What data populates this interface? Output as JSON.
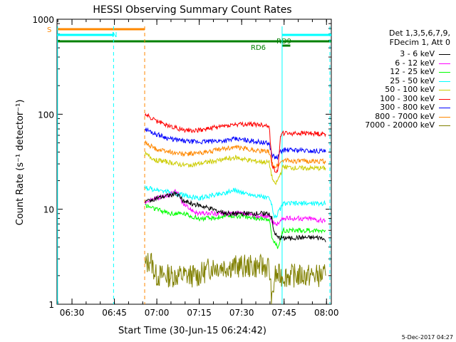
{
  "chart_data": {
    "type": "line",
    "title": "HESSI Observing Summary Count Rates",
    "xlabel": "Start Time (30-Jun-15 06:24:42)",
    "ylabel": "Count Rate (s⁻¹ detector⁻¹)",
    "y_scale": "log",
    "ylim": [
      1,
      1000
    ],
    "xlim_minutes_after_0624": [
      0,
      97
    ],
    "x_ticks": [
      {
        "t": 5.3,
        "label": "06:30"
      },
      {
        "t": 20.3,
        "label": "06:45"
      },
      {
        "t": 35.3,
        "label": "07:00"
      },
      {
        "t": 50.3,
        "label": "07:15"
      },
      {
        "t": 65.3,
        "label": "07:30"
      },
      {
        "t": 80.3,
        "label": "07:45"
      },
      {
        "t": 95.3,
        "label": "08:00"
      }
    ],
    "y_ticks": [
      {
        "v": 1,
        "label": "1"
      },
      {
        "v": 10,
        "label": "10"
      },
      {
        "v": 100,
        "label": "100"
      },
      {
        "v": 1000,
        "label": "1000"
      }
    ],
    "series": [
      {
        "name": "3 - 6 keV",
        "color": "#000000",
        "points": [
          [
            31,
            null
          ],
          [
            31.1,
            12
          ],
          [
            35,
            13
          ],
          [
            40,
            14
          ],
          [
            42,
            15
          ],
          [
            45,
            12
          ],
          [
            50,
            11
          ],
          [
            55,
            10
          ],
          [
            60,
            9
          ],
          [
            65,
            9
          ],
          [
            70,
            9
          ],
          [
            75,
            9
          ],
          [
            76,
            8
          ],
          [
            76.5,
            6
          ],
          [
            78,
            5
          ],
          [
            80,
            5
          ],
          [
            82,
            5
          ],
          [
            85,
            5
          ],
          [
            90,
            5
          ],
          [
            94,
            5
          ],
          [
            95,
            4.5
          ]
        ]
      },
      {
        "name": "6 - 12 keV",
        "color": "#ff00ff",
        "points": [
          [
            31,
            null
          ],
          [
            31.1,
            12
          ],
          [
            35,
            13
          ],
          [
            40,
            14
          ],
          [
            42,
            16
          ],
          [
            45,
            11
          ],
          [
            50,
            9
          ],
          [
            55,
            9
          ],
          [
            60,
            9
          ],
          [
            65,
            9
          ],
          [
            70,
            8.5
          ],
          [
            75,
            8.5
          ],
          [
            76,
            7.5
          ],
          [
            77,
            7
          ],
          [
            78,
            7
          ],
          [
            80,
            8
          ],
          [
            85,
            8
          ],
          [
            90,
            8
          ],
          [
            94,
            7.5
          ],
          [
            95,
            7.5
          ]
        ]
      },
      {
        "name": "12 - 25 keV",
        "color": "#00ff00",
        "points": [
          [
            31,
            null
          ],
          [
            31.1,
            11
          ],
          [
            35,
            10
          ],
          [
            40,
            9
          ],
          [
            45,
            9
          ],
          [
            50,
            8
          ],
          [
            55,
            8
          ],
          [
            60,
            8.5
          ],
          [
            65,
            8.5
          ],
          [
            70,
            8
          ],
          [
            75,
            8
          ],
          [
            76,
            5
          ],
          [
            78,
            4
          ],
          [
            80,
            6
          ],
          [
            85,
            6
          ],
          [
            90,
            6
          ],
          [
            94,
            6
          ],
          [
            95,
            6
          ]
        ]
      },
      {
        "name": "25 - 50 keV",
        "color": "#00ffff",
        "points": [
          [
            31,
            null
          ],
          [
            31.1,
            17
          ],
          [
            35,
            16
          ],
          [
            40,
            15
          ],
          [
            45,
            14
          ],
          [
            50,
            13
          ],
          [
            55,
            14
          ],
          [
            60,
            15
          ],
          [
            63,
            16
          ],
          [
            65,
            15
          ],
          [
            70,
            14
          ],
          [
            75,
            13
          ],
          [
            76,
            11
          ],
          [
            77,
            8
          ],
          [
            78,
            9
          ],
          [
            80,
            11.5
          ],
          [
            85,
            11.5
          ],
          [
            90,
            11.5
          ],
          [
            94,
            11.5
          ],
          [
            95,
            11.5
          ]
        ]
      },
      {
        "name": "50 - 100 keV",
        "color": "#cccc00",
        "points": [
          [
            31,
            null
          ],
          [
            31.1,
            38
          ],
          [
            35,
            33
          ],
          [
            40,
            31
          ],
          [
            45,
            29
          ],
          [
            50,
            30
          ],
          [
            55,
            32
          ],
          [
            60,
            34
          ],
          [
            63,
            35
          ],
          [
            65,
            34
          ],
          [
            70,
            32
          ],
          [
            75,
            31
          ],
          [
            76,
            22
          ],
          [
            77,
            18
          ],
          [
            78,
            20
          ],
          [
            80,
            28
          ],
          [
            85,
            27
          ],
          [
            90,
            27
          ],
          [
            94,
            27
          ],
          [
            95,
            27
          ]
        ]
      },
      {
        "name": "100 - 300 keV",
        "color": "#ff0000",
        "points": [
          [
            31,
            null
          ],
          [
            31.1,
            100
          ],
          [
            35,
            85
          ],
          [
            40,
            75
          ],
          [
            45,
            68
          ],
          [
            50,
            68
          ],
          [
            55,
            72
          ],
          [
            60,
            76
          ],
          [
            63,
            78
          ],
          [
            65,
            78
          ],
          [
            70,
            78
          ],
          [
            75,
            76
          ],
          [
            76,
            30
          ],
          [
            77,
            26
          ],
          [
            78,
            24
          ],
          [
            79,
            60
          ],
          [
            80,
            63
          ],
          [
            85,
            63
          ],
          [
            90,
            63
          ],
          [
            94,
            62
          ],
          [
            95,
            62
          ]
        ]
      },
      {
        "name": "300 - 800 keV",
        "color": "#0000ff",
        "points": [
          [
            31,
            null
          ],
          [
            31.1,
            70
          ],
          [
            35,
            62
          ],
          [
            40,
            55
          ],
          [
            45,
            52
          ],
          [
            50,
            51
          ],
          [
            55,
            52
          ],
          [
            60,
            53
          ],
          [
            63,
            55
          ],
          [
            65,
            54
          ],
          [
            70,
            52
          ],
          [
            75,
            49
          ],
          [
            76,
            38
          ],
          [
            77,
            35
          ],
          [
            78,
            35
          ],
          [
            79,
            40
          ],
          [
            80,
            42
          ],
          [
            85,
            42
          ],
          [
            90,
            41
          ],
          [
            94,
            41
          ],
          [
            95,
            40
          ]
        ]
      },
      {
        "name": "800 - 7000 keV",
        "color": "#ff8800",
        "points": [
          [
            31,
            null
          ],
          [
            31.1,
            50
          ],
          [
            35,
            43
          ],
          [
            40,
            40
          ],
          [
            45,
            38
          ],
          [
            50,
            39
          ],
          [
            55,
            41
          ],
          [
            60,
            44
          ],
          [
            63,
            45
          ],
          [
            65,
            44
          ],
          [
            70,
            42
          ],
          [
            75,
            40
          ],
          [
            76,
            30
          ],
          [
            77,
            28
          ],
          [
            78,
            29
          ],
          [
            80,
            33
          ],
          [
            85,
            32
          ],
          [
            90,
            32
          ],
          [
            94,
            32
          ],
          [
            95,
            31
          ]
        ]
      },
      {
        "name": "7000 - 20000 keV",
        "color": "#808000",
        "points": [
          [
            31,
            null
          ],
          [
            31.1,
            2.5
          ],
          [
            33,
            3
          ],
          [
            35,
            2
          ],
          [
            40,
            2
          ],
          [
            45,
            2
          ],
          [
            50,
            2
          ],
          [
            55,
            2.5
          ],
          [
            60,
            2.5
          ],
          [
            65,
            2.5
          ],
          [
            70,
            2.5
          ],
          [
            75,
            2.5
          ],
          [
            76,
            1
          ],
          [
            77,
            2
          ],
          [
            80,
            2
          ],
          [
            85,
            2
          ],
          [
            90,
            2
          ],
          [
            94,
            2
          ],
          [
            95,
            2
          ]
        ]
      }
    ],
    "annotations": [
      {
        "label": "S",
        "color": "#ff8800"
      },
      {
        "label": "N",
        "color": "#00ffff"
      },
      {
        "label": "RD6",
        "color": "#008000"
      },
      {
        "label": "RD9",
        "color": "#008000"
      }
    ],
    "legend_position": "top-right"
  },
  "legend": {
    "header_lines": [
      "Det 1,3,5,6,7,9,",
      "FDecim 1, Att 0"
    ],
    "entries": [
      {
        "label": "3 - 6 keV",
        "color": "#000000"
      },
      {
        "label": "6 - 12 keV",
        "color": "#ff00ff"
      },
      {
        "label": "12 - 25 keV",
        "color": "#00ff00"
      },
      {
        "label": "25 - 50 keV",
        "color": "#00ffff"
      },
      {
        "label": "50 - 100 keV",
        "color": "#cccc00"
      },
      {
        "label": "100 - 300 keV",
        "color": "#ff0000"
      },
      {
        "label": "300 - 800 keV",
        "color": "#0000ff"
      },
      {
        "label": "800 - 7000 keV",
        "color": "#ff8800"
      },
      {
        "label": "7000 - 20000 keV",
        "color": "#808000"
      }
    ]
  },
  "footer": {
    "timestamp": "5-Dec-2017 04:27"
  }
}
